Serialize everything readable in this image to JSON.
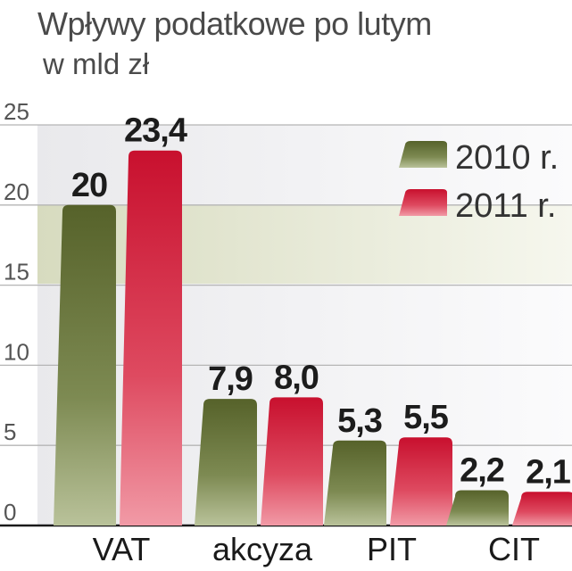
{
  "chart_data": {
    "type": "bar",
    "title": "Wpływy podatkowe po lutym",
    "subtitle": "w mld zł",
    "categories": [
      "VAT",
      "akcyza",
      "PIT",
      "CIT"
    ],
    "series": [
      {
        "name": "2010 r.",
        "values": [
          20,
          7.9,
          5.3,
          2.2
        ],
        "labels": [
          "20",
          "7,9",
          "5,3",
          "2,2"
        ],
        "color": "#5e6a32"
      },
      {
        "name": "2011 r.",
        "values": [
          23.4,
          8.0,
          5.5,
          2.1
        ],
        "labels": [
          "23,4",
          "8,0",
          "5,5",
          "2,1"
        ],
        "color": "#cc1a3c"
      }
    ],
    "yticks": [
      "0",
      "5",
      "10",
      "15",
      "20",
      "25"
    ],
    "ylim": [
      0,
      25
    ],
    "grid": true,
    "legend_position": "top-right"
  }
}
